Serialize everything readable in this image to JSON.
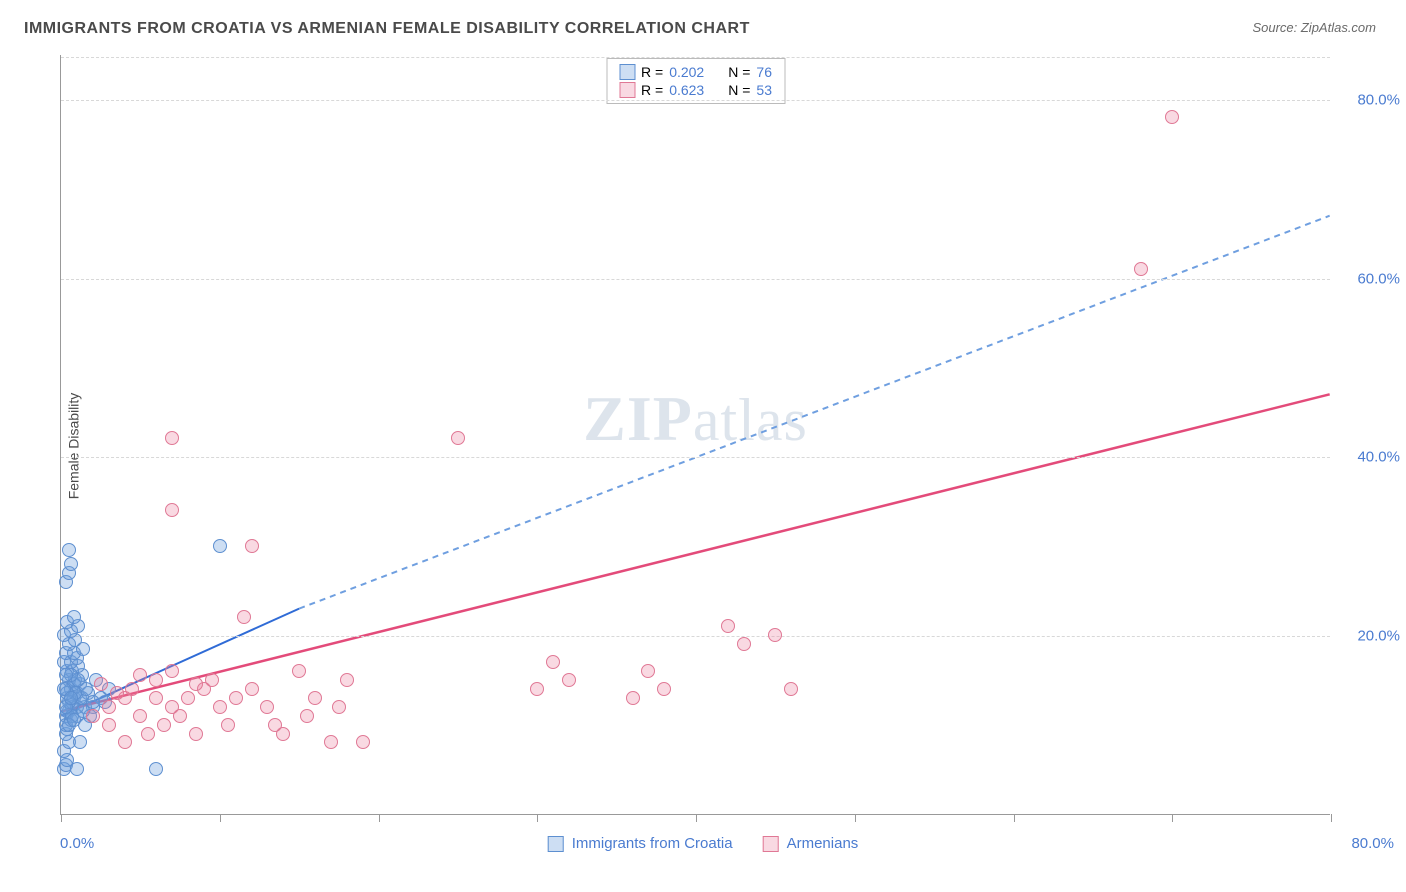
{
  "title": "IMMIGRANTS FROM CROATIA VS ARMENIAN FEMALE DISABILITY CORRELATION CHART",
  "source_label": "Source: ",
  "source_name": "ZipAtlas.com",
  "watermark_bold": "ZIP",
  "watermark_rest": "atlas",
  "y_axis_title": "Female Disability",
  "chart": {
    "type": "scatter",
    "xlim": [
      0,
      80
    ],
    "ylim": [
      0,
      85
    ],
    "x_tick_positions": [
      0,
      10,
      20,
      30,
      40,
      50,
      60,
      70,
      80
    ],
    "y_gridlines": [
      20,
      40,
      60,
      80
    ],
    "y_tick_labels": [
      "20.0%",
      "40.0%",
      "60.0%",
      "80.0%"
    ],
    "x_start_label": "0.0%",
    "x_end_label": "80.0%",
    "background_color": "#ffffff",
    "grid_color": "#d8d8d8",
    "axis_color": "#999999",
    "tick_label_color": "#4a7bd0",
    "marker_radius": 7,
    "marker_stroke_width": 1.5,
    "series": [
      {
        "name": "Immigrants from Croatia",
        "fill": "rgba(111,160,220,0.35)",
        "stroke": "#5d8fd0",
        "R": "0.202",
        "N": "76",
        "trend": {
          "x1": 0,
          "y1": 11,
          "x2": 15,
          "y2": 23,
          "extend_x2": 80,
          "extend_y2": 67,
          "solid_color": "#2f6bd6",
          "dash_color": "#6f9fe0",
          "width": 2
        },
        "points": [
          [
            0.2,
            5
          ],
          [
            0.3,
            5.5
          ],
          [
            0.4,
            6
          ],
          [
            0.2,
            7
          ],
          [
            0.5,
            8
          ],
          [
            0.3,
            9
          ],
          [
            0.4,
            9.5
          ],
          [
            1,
            5
          ],
          [
            1.2,
            8
          ],
          [
            1.5,
            12
          ],
          [
            0.3,
            11
          ],
          [
            0.5,
            11.5
          ],
          [
            0.7,
            12
          ],
          [
            0.4,
            13
          ],
          [
            0.8,
            13
          ],
          [
            1,
            13.5
          ],
          [
            0.3,
            14
          ],
          [
            0.6,
            14
          ],
          [
            1.2,
            14.5
          ],
          [
            0.5,
            15
          ],
          [
            0.9,
            15
          ],
          [
            1.3,
            15.5
          ],
          [
            0.4,
            16
          ],
          [
            0.7,
            16
          ],
          [
            1.1,
            16.5
          ],
          [
            0.2,
            17
          ],
          [
            0.6,
            17
          ],
          [
            1,
            17.5
          ],
          [
            0.3,
            18
          ],
          [
            0.8,
            18
          ],
          [
            1.4,
            18.5
          ],
          [
            0.5,
            19
          ],
          [
            0.9,
            19.5
          ],
          [
            0.2,
            20
          ],
          [
            0.6,
            20.5
          ],
          [
            1.1,
            21
          ],
          [
            0.4,
            21.5
          ],
          [
            0.8,
            22
          ],
          [
            0.3,
            10
          ],
          [
            0.6,
            10.5
          ],
          [
            1,
            11
          ],
          [
            0.4,
            11.5
          ],
          [
            0.7,
            12.5
          ],
          [
            1.2,
            13
          ],
          [
            0.3,
            26
          ],
          [
            0.5,
            27
          ],
          [
            0.6,
            28
          ],
          [
            0.5,
            29.5
          ],
          [
            6,
            5
          ],
          [
            10,
            30
          ],
          [
            2,
            12
          ],
          [
            2.5,
            13
          ],
          [
            3,
            14
          ],
          [
            1.8,
            11
          ],
          [
            2.2,
            15
          ],
          [
            1.5,
            10
          ],
          [
            1.7,
            13.5
          ],
          [
            2.8,
            12.5
          ],
          [
            1,
            12
          ],
          [
            1.3,
            13
          ],
          [
            0.8,
            14.5
          ],
          [
            1.6,
            14
          ],
          [
            2,
            12.5
          ],
          [
            0.9,
            13.5
          ],
          [
            1.1,
            15
          ],
          [
            0.7,
            11
          ],
          [
            0.5,
            12.5
          ],
          [
            0.4,
            13.5
          ],
          [
            0.6,
            15.5
          ],
          [
            0.3,
            12
          ],
          [
            0.2,
            14
          ],
          [
            0.5,
            10
          ],
          [
            0.8,
            10.5
          ],
          [
            1.4,
            11.5
          ],
          [
            0.3,
            15.5
          ],
          [
            0.6,
            13
          ]
        ]
      },
      {
        "name": "Armenians",
        "fill": "rgba(235,130,160,0.30)",
        "stroke": "#e07895",
        "R": "0.623",
        "N": "53",
        "trend": {
          "x1": 0,
          "y1": 11.5,
          "x2": 80,
          "y2": 47,
          "solid_color": "#e34b7a",
          "width": 2.5
        },
        "points": [
          [
            2,
            11
          ],
          [
            3,
            12
          ],
          [
            4,
            13
          ],
          [
            3,
            10
          ],
          [
            5,
            11
          ],
          [
            4.5,
            14
          ],
          [
            6,
            13
          ],
          [
            5.5,
            9
          ],
          [
            7,
            12
          ],
          [
            6.5,
            10
          ],
          [
            8,
            13
          ],
          [
            7.5,
            11
          ],
          [
            9,
            14
          ],
          [
            8.5,
            9
          ],
          [
            10,
            12
          ],
          [
            9.5,
            15
          ],
          [
            11,
            13
          ],
          [
            10.5,
            10
          ],
          [
            12,
            14
          ],
          [
            11.5,
            22
          ],
          [
            13,
            12
          ],
          [
            14,
            9
          ],
          [
            15,
            16
          ],
          [
            16,
            13
          ],
          [
            17,
            8
          ],
          [
            18,
            15
          ],
          [
            19,
            8
          ],
          [
            7,
            34
          ],
          [
            12,
            30
          ],
          [
            25,
            42
          ],
          [
            7,
            42
          ],
          [
            30,
            14
          ],
          [
            31,
            17
          ],
          [
            32,
            15
          ],
          [
            36,
            13
          ],
          [
            37,
            16
          ],
          [
            38,
            14
          ],
          [
            42,
            21
          ],
          [
            43,
            19
          ],
          [
            45,
            20
          ],
          [
            46,
            14
          ],
          [
            70,
            78
          ],
          [
            68,
            61
          ],
          [
            4,
            8
          ],
          [
            6,
            15
          ],
          [
            3.5,
            13.5
          ],
          [
            2.5,
            14.5
          ],
          [
            5,
            15.5
          ],
          [
            8.5,
            14.5
          ],
          [
            7,
            16
          ],
          [
            13.5,
            10
          ],
          [
            15.5,
            11
          ],
          [
            17.5,
            12
          ]
        ]
      }
    ]
  },
  "legend_top": {
    "r_prefix": "R = ",
    "n_prefix": "N = "
  },
  "legend_bottom": {
    "series1_label": "Immigrants from Croatia",
    "series2_label": "Armenians"
  }
}
